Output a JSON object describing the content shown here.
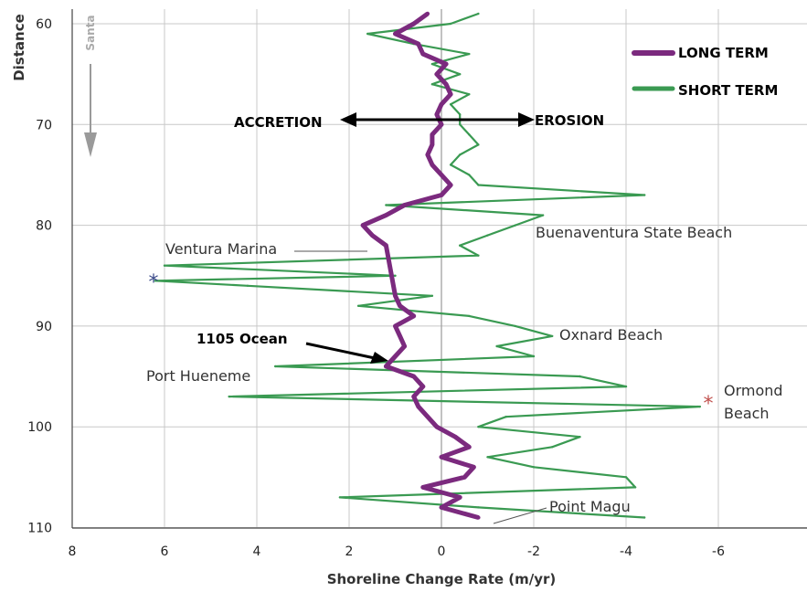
{
  "chart_data": {
    "type": "line",
    "orientation": "vertical-profile",
    "xlabel": "Shoreline Change Rate (m/yr)",
    "ylabel": "Distance",
    "side_label": "Santa",
    "xlim": [
      8,
      -8
    ],
    "ylim": [
      59,
      110
    ],
    "x_ticks": [
      "8",
      "6",
      "4",
      "2",
      "0",
      "-2",
      "-4",
      "-6",
      "-"
    ],
    "y_ticks": [
      "60",
      "70",
      "80",
      "90",
      "100",
      "110"
    ],
    "grid": true,
    "legend": {
      "placement": "top-right",
      "entries": [
        {
          "label": "LONG TERM",
          "color": "#7b2a7e"
        },
        {
          "label": "SHORT TERM",
          "color": "#3a9a52"
        }
      ]
    },
    "arrows": {
      "left_label": "ACCRETION",
      "right_label": "EROSION"
    },
    "annotations": [
      {
        "text": "Ventura Marina"
      },
      {
        "text": "Buenaventura State Beach"
      },
      {
        "text": "Oxnard Beach"
      },
      {
        "text": "Port Hueneme"
      },
      {
        "text": "1105 Ocean"
      },
      {
        "text": "Ormond"
      },
      {
        "text": "Beach"
      },
      {
        "text": "Point Magu"
      }
    ],
    "series": [
      {
        "name": "LONG TERM",
        "color": "#7b2a7e",
        "y": [
          59,
          60,
          61,
          62,
          63,
          64,
          65,
          66,
          67,
          68,
          69,
          70,
          71,
          72,
          73,
          74,
          75,
          76,
          77,
          78,
          79,
          80,
          81,
          82,
          87,
          88,
          89,
          90,
          91,
          92,
          93,
          94,
          95,
          96,
          97,
          98,
          99,
          100,
          101,
          102,
          103,
          104,
          105,
          106,
          107,
          108,
          109
        ],
        "x": [
          0.3,
          0.6,
          1.0,
          0.5,
          0.4,
          -0.1,
          0.1,
          -0.1,
          -0.2,
          0.0,
          0.1,
          0.0,
          0.2,
          0.2,
          0.3,
          0.2,
          0.0,
          -0.2,
          0.0,
          0.8,
          1.2,
          1.7,
          1.5,
          1.2,
          1.0,
          0.9,
          0.6,
          1.0,
          0.9,
          0.8,
          1.0,
          1.2,
          0.6,
          0.4,
          0.6,
          0.5,
          0.3,
          0.1,
          -0.3,
          -0.6,
          0.0,
          -0.7,
          -0.5,
          0.4,
          -0.4,
          0.0,
          -0.8
        ]
      },
      {
        "name": "SHORT TERM",
        "color": "#3a9a52",
        "y": [
          59,
          60,
          61,
          62,
          63,
          64,
          65,
          66,
          67,
          68,
          69,
          70,
          71,
          72,
          73,
          74,
          75,
          76,
          77,
          78,
          79,
          80,
          81,
          82,
          83,
          84,
          85,
          85.5,
          86,
          87,
          88,
          89,
          90,
          91,
          92,
          93,
          94,
          95,
          96,
          97,
          98,
          99,
          100,
          101,
          102,
          103,
          104,
          105,
          106,
          107,
          108,
          109
        ],
        "x": [
          -0.8,
          -0.2,
          1.6,
          0.6,
          -0.6,
          0.2,
          -0.4,
          0.2,
          -0.6,
          -0.2,
          -0.4,
          -0.4,
          -0.6,
          -0.8,
          -0.4,
          -0.2,
          -0.6,
          -0.8,
          -4.4,
          1.2,
          -2.2,
          -1.6,
          -1.0,
          -0.4,
          -0.8,
          6.0,
          1.0,
          6.2,
          4.2,
          0.2,
          1.8,
          -0.6,
          -1.6,
          -2.4,
          -1.2,
          -2.0,
          3.6,
          -3.0,
          -4.0,
          4.6,
          -5.6,
          -1.4,
          -0.8,
          -3.0,
          -2.4,
          -1.0,
          -2.0,
          -4.0,
          -4.2,
          2.2,
          -0.8,
          -4.4
        ]
      }
    ]
  }
}
